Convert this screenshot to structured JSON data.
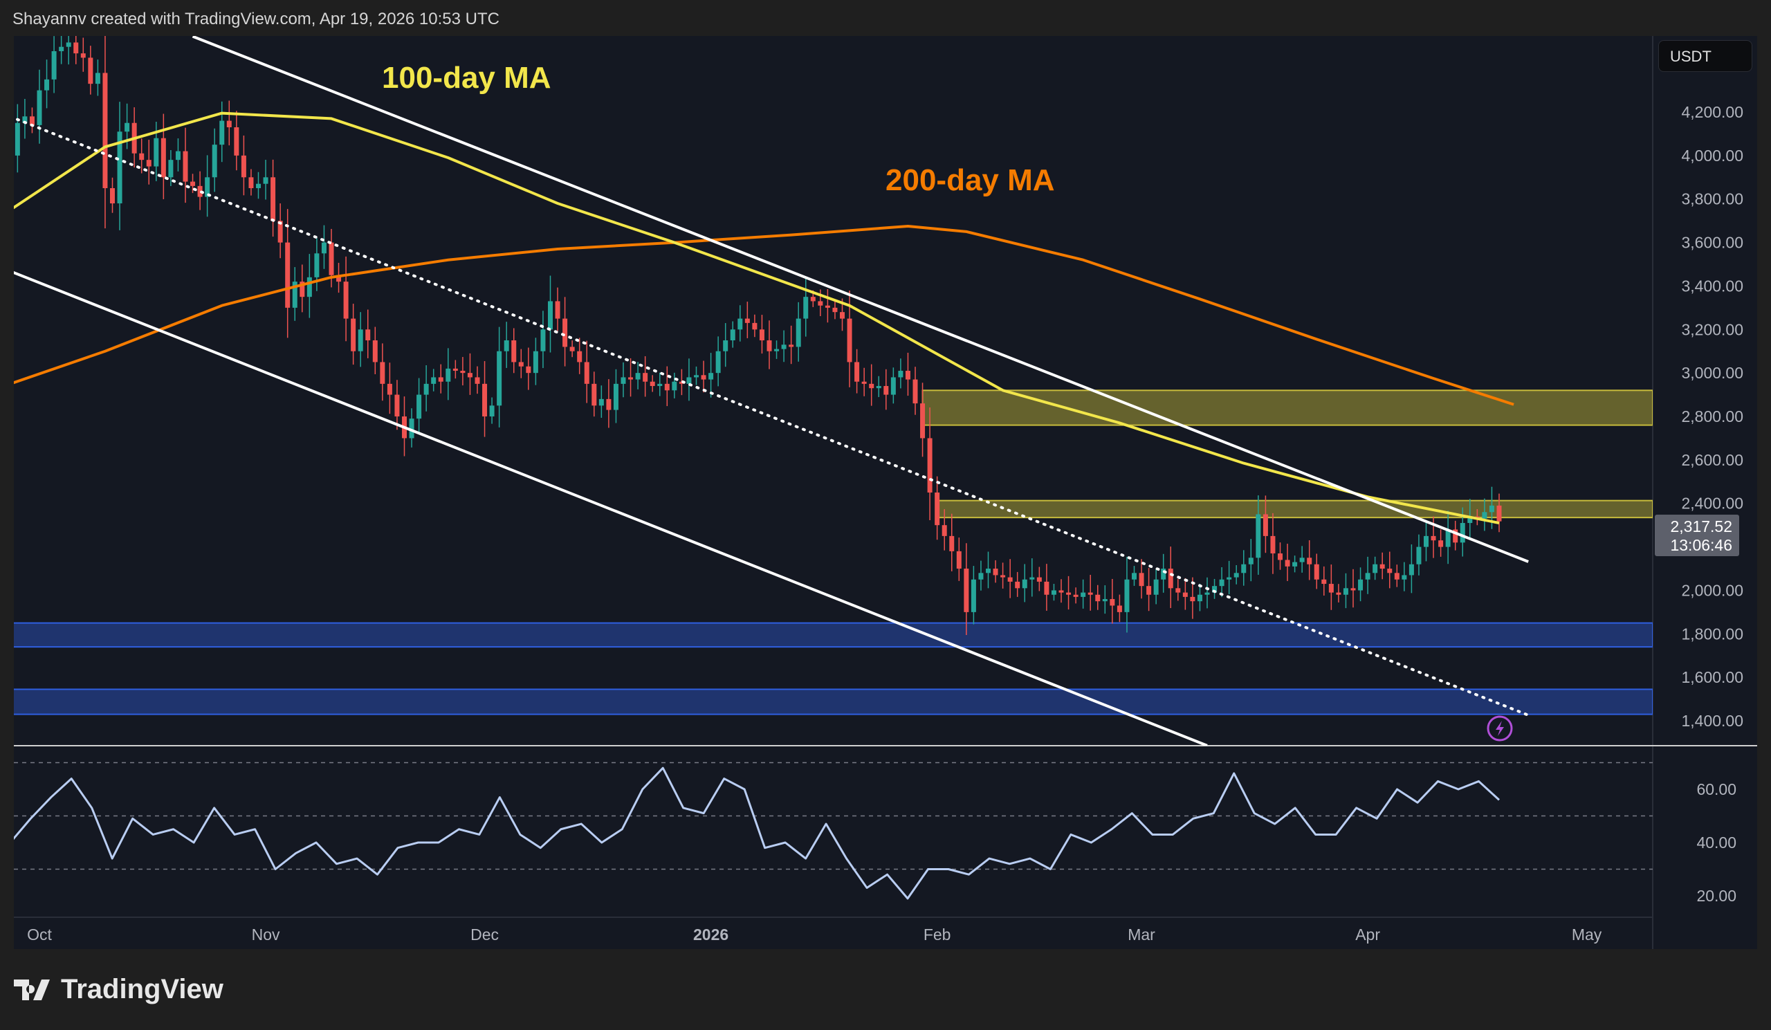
{
  "header": {
    "attribution": "Shayannv created with TradingView.com, Apr 19, 2026 10:53 UTC"
  },
  "currency_button": "USDT",
  "logo_text": "TradingView",
  "annotations": {
    "ma100": "100-day MA",
    "ma200": "200-day MA"
  },
  "colors": {
    "up": "#26a69a",
    "down": "#ef5350",
    "ma100": "#f2e64b",
    "ma200": "#f57c00",
    "zone_yellow": "#c8bc3c",
    "zone_blue": "#2f5fe0",
    "rsi": "#b9cdf2",
    "trendline": "#ffffff",
    "alert_icon": "#b04fd8"
  },
  "chart_data": [
    {
      "type": "candlestick",
      "title": "",
      "start_date": "2025-09-27",
      "end_date": "2026-04-19",
      "ylim": [
        1300,
        4550
      ],
      "y_ticks": [
        "4,200.00",
        "4,000.00",
        "3,800.00",
        "3,600.00",
        "3,400.00",
        "3,200.00",
        "3,000.00",
        "2,800.00",
        "2,600.00",
        "2,400.00",
        "2,000.00",
        "1,800.00",
        "1,600.00",
        "1,400.00"
      ],
      "y_tick_values": [
        4200,
        4000,
        3800,
        3600,
        3400,
        3200,
        3000,
        2800,
        2600,
        2400,
        2000,
        1800,
        1600,
        1400
      ],
      "x_ticks": [
        {
          "label": "Oct",
          "date": "2025-10-01"
        },
        {
          "label": "Nov",
          "date": "2025-11-01"
        },
        {
          "label": "Dec",
          "date": "2025-12-01"
        },
        {
          "label": "2026",
          "date": "2026-01-01"
        },
        {
          "label": "Feb",
          "date": "2026-02-01"
        },
        {
          "label": "Mar",
          "date": "2026-03-01"
        },
        {
          "label": "Apr",
          "date": "2026-04-01"
        },
        {
          "label": "May",
          "date": "2026-05-01"
        }
      ],
      "last_price": "2,317.52",
      "countdown": "13:06:46",
      "closes": [
        4000,
        4150,
        4180,
        4140,
        4300,
        4350,
        4480,
        4500,
        4520,
        4470,
        4450,
        4330,
        4380,
        3850,
        3780,
        4110,
        4150,
        4010,
        3980,
        3950,
        4080,
        3900,
        3980,
        4020,
        3880,
        3860,
        3810,
        3900,
        4050,
        4160,
        4130,
        4000,
        3900,
        3850,
        3870,
        3900,
        3700,
        3600,
        3300,
        3420,
        3350,
        3440,
        3550,
        3600,
        3450,
        3420,
        3250,
        3100,
        3200,
        3150,
        3050,
        2950,
        2900,
        2800,
        2700,
        2790,
        2900,
        2950,
        2980,
        2960,
        3020,
        3010,
        3000,
        2980,
        2950,
        2800,
        2850,
        3100,
        3150,
        3050,
        3030,
        3000,
        3100,
        3200,
        3330,
        3250,
        3120,
        3100,
        3050,
        2950,
        2850,
        2880,
        2830,
        2950,
        2980,
        2970,
        3000,
        2960,
        2940,
        2950,
        2920,
        2960,
        2950,
        2980,
        2990,
        2970,
        3000,
        3100,
        3150,
        3200,
        3250,
        3230,
        3200,
        3150,
        3100,
        3110,
        3130,
        3120,
        3250,
        3350,
        3330,
        3310,
        3300,
        3280,
        3250,
        3050,
        2960,
        2950,
        2930,
        2940,
        2900,
        2980,
        3010,
        2970,
        2860,
        2700,
        2450,
        2300,
        2250,
        2180,
        2100,
        1900,
        2050,
        2080,
        2100,
        2070,
        2060,
        2040,
        2010,
        2050,
        2060,
        2040,
        1980,
        2000,
        1990,
        1980,
        1970,
        1990,
        1980,
        1950,
        1960,
        1930,
        1900,
        2050,
        2080,
        2020,
        1980,
        2050,
        2100,
        2010,
        1990,
        1970,
        1950,
        1980,
        1990,
        2020,
        2050,
        2060,
        2080,
        2120,
        2150,
        2350,
        2250,
        2170,
        2140,
        2110,
        2130,
        2150,
        2120,
        2050,
        2030,
        1990,
        1980,
        2010,
        2000,
        2050,
        2080,
        2120,
        2100,
        2080,
        2050,
        2070,
        2120,
        2200,
        2250,
        2230,
        2200,
        2280,
        2220,
        2310,
        2340,
        2330,
        2360,
        2390,
        2317.52
      ],
      "ma100": [
        [
          "2025-09-27",
          3750
        ],
        [
          "2025-10-10",
          4040
        ],
        [
          "2025-10-26",
          4195
        ],
        [
          "2025-11-10",
          4170
        ],
        [
          "2025-11-26",
          3990
        ],
        [
          "2025-12-11",
          3780
        ],
        [
          "2025-12-27",
          3600
        ],
        [
          "2026-01-20",
          3310
        ],
        [
          "2026-02-10",
          2920
        ],
        [
          "2026-02-26",
          2770
        ],
        [
          "2026-03-15",
          2585
        ],
        [
          "2026-04-01",
          2430
        ],
        [
          "2026-04-19",
          2310
        ]
      ],
      "ma200": [
        [
          "2025-09-27",
          2950
        ],
        [
          "2025-10-10",
          3100
        ],
        [
          "2025-10-26",
          3310
        ],
        [
          "2025-11-10",
          3440
        ],
        [
          "2025-11-26",
          3520
        ],
        [
          "2025-12-11",
          3570
        ],
        [
          "2025-12-27",
          3600
        ],
        [
          "2026-01-12",
          3635
        ],
        [
          "2026-01-28",
          3675
        ],
        [
          "2026-02-05",
          3650
        ],
        [
          "2026-02-21",
          3520
        ],
        [
          "2026-03-09",
          3340
        ],
        [
          "2026-03-25",
          3155
        ],
        [
          "2026-04-10",
          2975
        ],
        [
          "2026-04-21",
          2855
        ]
      ],
      "trendlines": [
        {
          "style": "solid",
          "from": [
            "2025-10-22",
            4548
          ],
          "to": [
            "2026-04-23",
            2132
          ]
        },
        {
          "style": "dotted",
          "from": [
            "2025-09-27",
            4179
          ],
          "to": [
            "2026-04-23",
            1426
          ]
        },
        {
          "style": "solid",
          "from": [
            "2025-09-27",
            3468
          ],
          "to": [
            "2026-03-10",
            1286
          ]
        }
      ],
      "zones": [
        {
          "color": "yellow",
          "from_date": "2026-01-30",
          "top": 2920,
          "bottom": 2760
        },
        {
          "color": "yellow",
          "from_date": "2026-02-01",
          "top": 2413,
          "bottom": 2335
        },
        {
          "color": "blue",
          "from_date": "2025-09-27",
          "top": 1850,
          "bottom": 1740
        },
        {
          "color": "blue",
          "from_date": "2025-09-27",
          "top": 1545,
          "bottom": 1430
        }
      ]
    },
    {
      "type": "line",
      "title": "",
      "ylim": [
        15,
        75
      ],
      "y_ticks": [
        "60.00",
        "40.00",
        "20.00"
      ],
      "y_tick_values": [
        60,
        40,
        20
      ],
      "bands": [
        70,
        50,
        30
      ],
      "values": [
        40,
        49,
        57,
        64,
        53,
        34,
        49,
        43,
        45,
        40,
        53,
        43,
        45,
        30,
        36,
        40,
        32,
        34,
        28,
        38,
        40,
        40,
        45,
        43,
        57,
        43,
        38,
        45,
        47,
        40,
        45,
        60,
        68,
        53,
        51,
        64,
        60,
        38,
        40,
        34,
        47,
        34,
        23,
        28,
        19,
        30,
        30,
        28,
        34,
        32,
        34,
        30,
        43,
        40,
        45,
        51,
        43,
        43,
        49,
        51,
        66,
        51,
        47,
        53,
        43,
        43,
        53,
        49,
        60,
        55,
        63,
        60,
        63,
        56
      ]
    }
  ]
}
